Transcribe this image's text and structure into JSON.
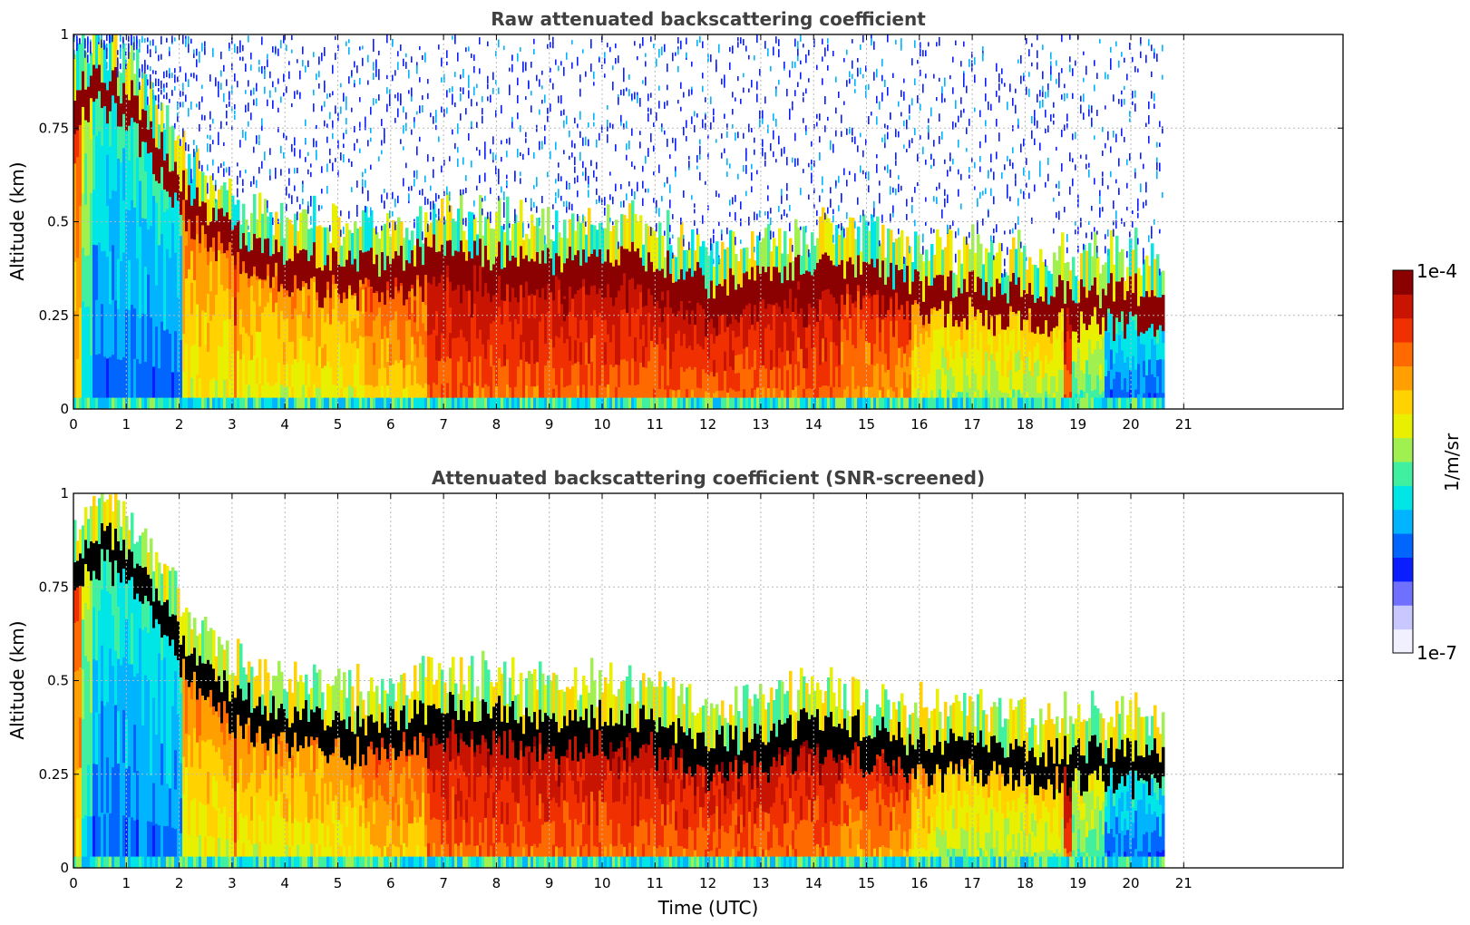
{
  "chart_data": [
    {
      "type": "heatmap",
      "title": "Raw attenuated backscattering coefficient",
      "xlabel": "",
      "ylabel": "Altitude (km)",
      "xlim": [
        0,
        24
      ],
      "ylim": [
        0,
        1
      ],
      "xticks": [
        "0",
        "1",
        "2",
        "3",
        "4",
        "5",
        "6",
        "7",
        "8",
        "9",
        "10",
        "11",
        "12",
        "13",
        "14",
        "15",
        "16",
        "17",
        "18",
        "19",
        "20",
        "21"
      ],
      "yticks": [
        "0",
        "0.25",
        "0.5",
        "0.75",
        "1"
      ],
      "data_end_hour": 20.6,
      "grid": true,
      "screened": false,
      "layer_top_km": [
        [
          0,
          0.82
        ],
        [
          0.5,
          0.86
        ],
        [
          1,
          0.82
        ],
        [
          1.5,
          0.7
        ],
        [
          2,
          0.58
        ],
        [
          2.5,
          0.5
        ],
        [
          3,
          0.44
        ],
        [
          4,
          0.38
        ],
        [
          5,
          0.36
        ],
        [
          6,
          0.36
        ],
        [
          7,
          0.4
        ],
        [
          8,
          0.38
        ],
        [
          9,
          0.36
        ],
        [
          10,
          0.38
        ],
        [
          11,
          0.36
        ],
        [
          12,
          0.3
        ],
        [
          13,
          0.32
        ],
        [
          14,
          0.36
        ],
        [
          15,
          0.34
        ],
        [
          16,
          0.3
        ],
        [
          17,
          0.3
        ],
        [
          18,
          0.28
        ],
        [
          18.7,
          0.28
        ]
      ]
    },
    {
      "type": "heatmap",
      "title": "Attenuated backscattering coefficient (SNR-screened)",
      "xlabel": "Time (UTC)",
      "ylabel": "Altitude (km)",
      "xlim": [
        0,
        24
      ],
      "ylim": [
        0,
        1
      ],
      "xticks": [
        "0",
        "1",
        "2",
        "3",
        "4",
        "5",
        "6",
        "7",
        "8",
        "9",
        "10",
        "11",
        "12",
        "13",
        "14",
        "15",
        "16",
        "17",
        "18",
        "19",
        "20",
        "21"
      ],
      "yticks": [
        "0",
        "0.25",
        "0.5",
        "0.75",
        "1"
      ],
      "data_end_hour": 20.6,
      "grid": true,
      "screened": true
    }
  ],
  "colorbar": {
    "label": "1/m/sr",
    "max_label": "1e-4",
    "min_label": "1e-7",
    "scale": "log",
    "range": [
      1e-07,
      0.0001
    ],
    "colors": [
      "#f0f0ff",
      "#c8c8ff",
      "#7070ff",
      "#0a1eff",
      "#0066ff",
      "#00b4ff",
      "#00e6e6",
      "#40f0a0",
      "#a0f050",
      "#e8f000",
      "#ffd200",
      "#ffa000",
      "#ff6a00",
      "#f03000",
      "#c81400",
      "#8b0000"
    ]
  }
}
